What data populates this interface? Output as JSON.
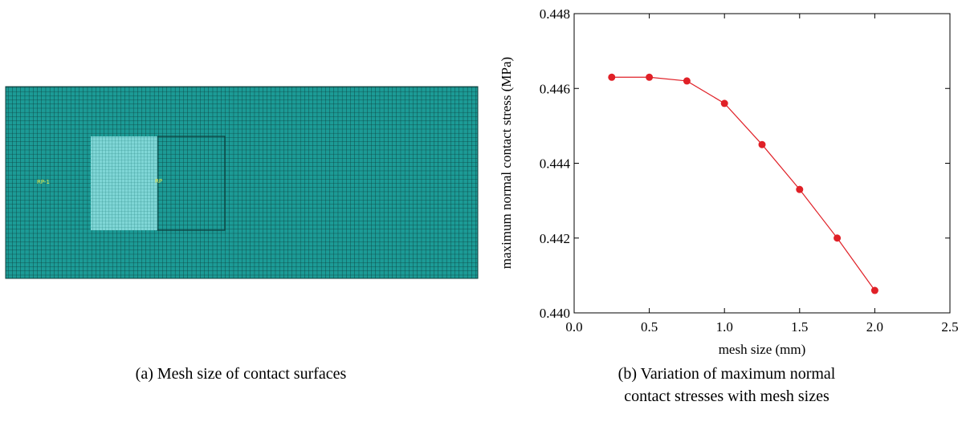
{
  "figure": {
    "caption_a": "(a) Mesh size of contact surfaces",
    "caption_b": "(b) Variation of maximum normal contact stresses with mesh sizes",
    "mesh_labels": [
      "RP-1",
      "RP"
    ]
  },
  "chart_data": {
    "type": "line",
    "x_label": "mesh size (mm)",
    "y_label": "maximum normal contact stress (MPa)",
    "x": [
      0.25,
      0.5,
      0.75,
      1.0,
      1.25,
      1.5,
      1.75,
      2.0
    ],
    "series": [
      {
        "color": "#e02027",
        "values": [
          0.4463,
          0.4463,
          0.4462,
          0.4456,
          0.4445,
          0.4433,
          0.442,
          0.4406
        ]
      }
    ],
    "xlim": [
      0,
      2.5
    ],
    "xticks": [
      {
        "value": 0,
        "label": "0.0"
      },
      0.5,
      {
        "value": 1,
        "label": "1.0"
      },
      1.5,
      {
        "value": 2,
        "label": "2.0"
      },
      2.5
    ],
    "ylim": [
      0.44,
      0.448
    ],
    "yticks": [
      {
        "value": 0.44,
        "label": "0.440"
      },
      {
        "value": 0.442,
        "label": "0.442"
      },
      {
        "value": 0.444,
        "label": "0.444"
      },
      {
        "value": 0.446,
        "label": "0.446"
      },
      {
        "value": 0.448,
        "label": "0.448"
      }
    ],
    "grid": false
  }
}
